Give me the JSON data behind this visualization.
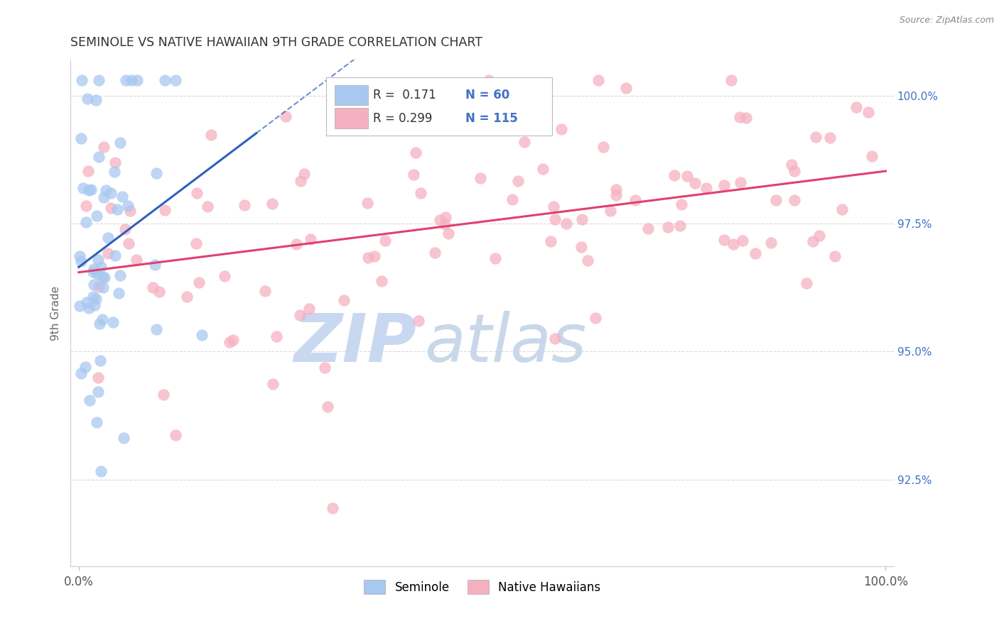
{
  "title": "SEMINOLE VS NATIVE HAWAIIAN 9TH GRADE CORRELATION CHART",
  "source_text": "Source: ZipAtlas.com",
  "ylabel": "9th Grade",
  "x_tick_labels": [
    "0.0%",
    "100.0%"
  ],
  "y_tick_labels": [
    "92.5%",
    "95.0%",
    "97.5%",
    "100.0%"
  ],
  "xlim": [
    -0.01,
    1.01
  ],
  "ylim": [
    0.908,
    1.007
  ],
  "y_ticks": [
    0.925,
    0.95,
    0.975,
    1.0
  ],
  "legend_blue_r": "0.171",
  "legend_blue_n": "60",
  "legend_pink_r": "0.299",
  "legend_pink_n": "115",
  "blue_color": "#a8c8f0",
  "pink_color": "#f5b0c0",
  "blue_line_color": "#3060c0",
  "pink_line_color": "#e04070",
  "watermark_zip_color": "#c8d8f0",
  "watermark_atlas_color": "#c8d8e8",
  "background_color": "#ffffff",
  "grid_color": "#d8d8d8",
  "title_color": "#333333",
  "axis_label_color": "#666666",
  "right_tick_color": "#4472c4",
  "tick_label_color": "#555555"
}
